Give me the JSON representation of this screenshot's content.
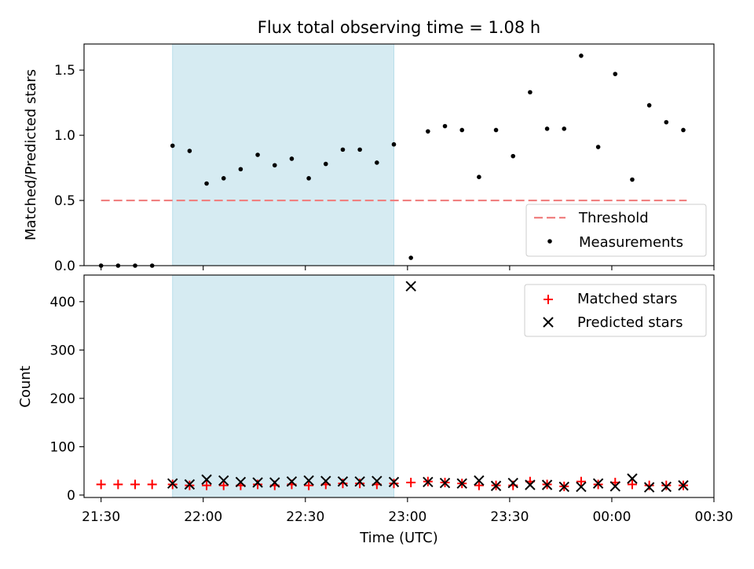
{
  "chart_data": {
    "type": "scatter",
    "title": "Flux total observing time = 1.08 h",
    "shared_x": {
      "label": "Time (UTC)",
      "range": [
        "21:25",
        "00:30"
      ],
      "ticks": [
        "21:30",
        "22:00",
        "22:30",
        "23:00",
        "23:30",
        "00:00",
        "00:30"
      ]
    },
    "highlight_span": {
      "start": "21:51",
      "end": "22:56",
      "color": "#add8e6"
    },
    "panels": [
      {
        "ylabel": "Matched/Predicted stars",
        "ylim": [
          0,
          1.7
        ],
        "yticks": [
          "0.0",
          "0.5",
          "1.0",
          "1.5"
        ],
        "legend": "bottom-right",
        "threshold": {
          "name": "Threshold",
          "value": 0.5,
          "x_start": "21:30",
          "x_end": "00:22",
          "color": "#f08080"
        },
        "measurements": {
          "name": "Measurements",
          "color": "#000000",
          "points": [
            [
              "21:30",
              0.0
            ],
            [
              "21:35",
              0.0
            ],
            [
              "21:40",
              0.0
            ],
            [
              "21:45",
              0.0
            ],
            [
              "21:51",
              0.92
            ],
            [
              "21:56",
              0.88
            ],
            [
              "22:01",
              0.63
            ],
            [
              "22:06",
              0.67
            ],
            [
              "22:11",
              0.74
            ],
            [
              "22:16",
              0.85
            ],
            [
              "22:21",
              0.77
            ],
            [
              "22:26",
              0.82
            ],
            [
              "22:31",
              0.67
            ],
            [
              "22:36",
              0.78
            ],
            [
              "22:41",
              0.89
            ],
            [
              "22:46",
              0.89
            ],
            [
              "22:51",
              0.79
            ],
            [
              "22:56",
              0.93
            ],
            [
              "23:01",
              0.06
            ],
            [
              "23:06",
              1.03
            ],
            [
              "23:11",
              1.07
            ],
            [
              "23:16",
              1.04
            ],
            [
              "23:21",
              0.68
            ],
            [
              "23:26",
              1.04
            ],
            [
              "23:31",
              0.84
            ],
            [
              "23:36",
              1.33
            ],
            [
              "23:41",
              1.05
            ],
            [
              "23:46",
              1.05
            ],
            [
              "23:51",
              1.61
            ],
            [
              "23:56",
              0.91
            ],
            [
              "00:01",
              1.47
            ],
            [
              "00:06",
              0.66
            ],
            [
              "00:11",
              1.23
            ],
            [
              "00:16",
              1.1
            ],
            [
              "00:21",
              1.04
            ]
          ]
        }
      },
      {
        "ylabel": "Count",
        "ylim": [
          -5,
          455
        ],
        "yticks": [
          "0",
          "100",
          "200",
          "300",
          "400"
        ],
        "legend": "top-right",
        "series": [
          {
            "name": "Matched stars",
            "marker": "plus",
            "color": "#ff0000",
            "points": [
              [
                "21:30",
                22
              ],
              [
                "21:35",
                22
              ],
              [
                "21:40",
                22
              ],
              [
                "21:45",
                22
              ],
              [
                "21:51",
                22
              ],
              [
                "21:56",
                20
              ],
              [
                "22:01",
                20
              ],
              [
                "22:06",
                20
              ],
              [
                "22:11",
                20
              ],
              [
                "22:16",
                22
              ],
              [
                "22:21",
                20
              ],
              [
                "22:26",
                22
              ],
              [
                "22:31",
                20
              ],
              [
                "22:36",
                22
              ],
              [
                "22:41",
                24
              ],
              [
                "22:46",
                24
              ],
              [
                "22:51",
                22
              ],
              [
                "22:56",
                24
              ],
              [
                "23:01",
                26
              ],
              [
                "23:06",
                28
              ],
              [
                "23:11",
                26
              ],
              [
                "23:16",
                24
              ],
              [
                "23:21",
                20
              ],
              [
                "23:26",
                20
              ],
              [
                "23:31",
                20
              ],
              [
                "23:36",
                28
              ],
              [
                "23:41",
                22
              ],
              [
                "23:46",
                18
              ],
              [
                "23:51",
                28
              ],
              [
                "23:56",
                22
              ],
              [
                "00:01",
                26
              ],
              [
                "00:06",
                22
              ],
              [
                "00:11",
                20
              ],
              [
                "00:16",
                20
              ],
              [
                "00:21",
                20
              ]
            ]
          },
          {
            "name": "Predicted stars",
            "marker": "x",
            "color": "#000000",
            "points": [
              [
                "21:51",
                24
              ],
              [
                "21:56",
                22
              ],
              [
                "22:01",
                32
              ],
              [
                "22:06",
                30
              ],
              [
                "22:11",
                27
              ],
              [
                "22:16",
                26
              ],
              [
                "22:21",
                26
              ],
              [
                "22:26",
                28
              ],
              [
                "22:31",
                30
              ],
              [
                "22:36",
                29
              ],
              [
                "22:41",
                28
              ],
              [
                "22:46",
                28
              ],
              [
                "22:51",
                29
              ],
              [
                "22:56",
                27
              ],
              [
                "23:01",
                432
              ],
              [
                "23:06",
                27
              ],
              [
                "23:11",
                25
              ],
              [
                "23:16",
                24
              ],
              [
                "23:21",
                30
              ],
              [
                "23:26",
                19
              ],
              [
                "23:31",
                25
              ],
              [
                "23:36",
                21
              ],
              [
                "23:41",
                21
              ],
              [
                "23:46",
                17
              ],
              [
                "23:51",
                17
              ],
              [
                "23:56",
                24
              ],
              [
                "00:01",
                18
              ],
              [
                "00:06",
                34
              ],
              [
                "00:11",
                16
              ],
              [
                "00:16",
                17
              ],
              [
                "00:21",
                20
              ]
            ]
          }
        ]
      }
    ]
  }
}
